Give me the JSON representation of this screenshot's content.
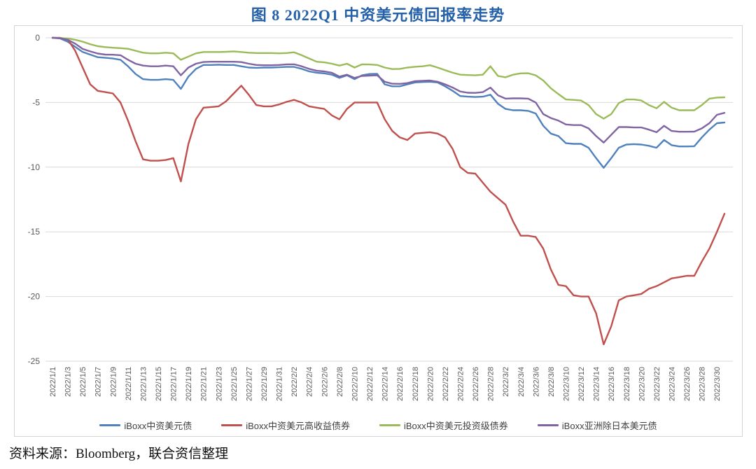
{
  "title": "图 8  2022Q1 中资美元债回报率走势",
  "source_note": "资料来源：Bloomberg，联合资信整理",
  "styles": {
    "title_color": "#2460A8",
    "axis_text_color": "#595959",
    "grid_color": "#d9d9d9",
    "frame_border_color": "#d4d4d4",
    "legend_text_color": "#3f3f3f"
  },
  "chart_data": {
    "type": "line",
    "title": "图 8  2022Q1 中资美元债回报率走势",
    "xlabel": "",
    "ylabel": "",
    "ylim": [
      -25,
      0
    ],
    "y_ticks": [
      0,
      -5,
      -10,
      -15,
      -20,
      -25
    ],
    "grid": "horizontal",
    "legend_position": "bottom",
    "n_points": 90,
    "x_tick_every_n_days": 2,
    "x_tick_labels": [
      "2022/1/1",
      "2022/1/3",
      "2022/1/5",
      "2022/1/7",
      "2022/1/9",
      "2022/1/11",
      "2022/1/13",
      "2022/1/15",
      "2022/1/17",
      "2022/1/19",
      "2022/1/21",
      "2022/1/23",
      "2022/1/25",
      "2022/1/27",
      "2022/1/29",
      "2022/1/31",
      "2022/2/2",
      "2022/2/4",
      "2022/2/6",
      "2022/2/8",
      "2022/2/10",
      "2022/2/12",
      "2022/2/14",
      "2022/2/16",
      "2022/2/18",
      "2022/2/20",
      "2022/2/22",
      "2022/2/24",
      "2022/2/26",
      "2022/2/28",
      "2022/3/2",
      "2022/3/4",
      "2022/3/6",
      "2022/3/8",
      "2022/3/10",
      "2022/3/12",
      "2022/3/14",
      "2022/3/16",
      "2022/3/18",
      "2022/3/20",
      "2022/3/22",
      "2022/3/24",
      "2022/3/26",
      "2022/3/28",
      "2022/3/30"
    ],
    "series": [
      {
        "name": "iBoxx中资美元债",
        "color": "#4F81BD",
        "values": [
          0,
          -0.05,
          -0.3,
          -0.7,
          -1.1,
          -1.3,
          -1.5,
          -1.55,
          -1.6,
          -1.7,
          -2.2,
          -2.8,
          -3.2,
          -3.25,
          -3.25,
          -3.2,
          -3.25,
          -3.95,
          -3.0,
          -2.4,
          -2.1,
          -2.1,
          -2.08,
          -2.1,
          -2.1,
          -2.2,
          -2.3,
          -2.32,
          -2.3,
          -2.3,
          -2.28,
          -2.25,
          -2.25,
          -2.4,
          -2.6,
          -2.7,
          -2.75,
          -2.85,
          -3.1,
          -2.9,
          -3.2,
          -2.9,
          -2.8,
          -2.78,
          -3.6,
          -3.75,
          -3.75,
          -3.6,
          -3.45,
          -3.42,
          -3.4,
          -3.45,
          -3.75,
          -4.1,
          -4.5,
          -4.55,
          -4.58,
          -4.55,
          -4.4,
          -5.1,
          -5.5,
          -5.6,
          -5.6,
          -5.65,
          -5.85,
          -6.8,
          -7.4,
          -7.6,
          -8.15,
          -8.2,
          -8.2,
          -8.5,
          -9.3,
          -10.05,
          -9.3,
          -8.5,
          -8.25,
          -8.22,
          -8.25,
          -8.35,
          -8.5,
          -7.9,
          -8.3,
          -8.4,
          -8.4,
          -8.38,
          -7.7,
          -7.1,
          -6.6,
          -6.55
        ]
      },
      {
        "name": "iBoxx中资美元高收益债券",
        "color": "#C0504D",
        "values": [
          0,
          0,
          -0.1,
          -1.0,
          -2.3,
          -3.6,
          -4.1,
          -4.2,
          -4.3,
          -5.0,
          -6.4,
          -8.0,
          -9.4,
          -9.5,
          -9.5,
          -9.45,
          -9.3,
          -11.1,
          -8.2,
          -6.3,
          -5.4,
          -5.35,
          -5.3,
          -4.9,
          -4.3,
          -3.7,
          -4.4,
          -5.2,
          -5.3,
          -5.3,
          -5.15,
          -4.95,
          -4.8,
          -5.0,
          -5.3,
          -5.4,
          -5.5,
          -6.0,
          -6.3,
          -5.5,
          -5.0,
          -5.0,
          -5.0,
          -5.0,
          -6.3,
          -7.2,
          -7.7,
          -7.9,
          -7.4,
          -7.35,
          -7.3,
          -7.4,
          -7.7,
          -8.6,
          -10.0,
          -10.45,
          -10.5,
          -11.2,
          -11.9,
          -12.4,
          -12.9,
          -14.2,
          -15.3,
          -15.3,
          -15.4,
          -16.3,
          -17.9,
          -19.1,
          -19.2,
          -19.9,
          -20.0,
          -20.0,
          -21.3,
          -23.7,
          -22.3,
          -20.3,
          -20.0,
          -19.9,
          -19.8,
          -19.4,
          -19.2,
          -18.9,
          -18.6,
          -18.5,
          -18.4,
          -18.4,
          -17.3,
          -16.3,
          -15.0,
          -13.6
        ]
      },
      {
        "name": "iBoxx中资美元投资级债券",
        "color": "#9BBB59",
        "values": [
          0,
          -0.02,
          -0.05,
          -0.15,
          -0.3,
          -0.5,
          -0.65,
          -0.72,
          -0.77,
          -0.8,
          -0.85,
          -1.0,
          -1.15,
          -1.2,
          -1.2,
          -1.15,
          -1.2,
          -1.7,
          -1.45,
          -1.2,
          -1.1,
          -1.1,
          -1.1,
          -1.08,
          -1.05,
          -1.1,
          -1.15,
          -1.18,
          -1.18,
          -1.18,
          -1.2,
          -1.18,
          -1.12,
          -1.35,
          -1.6,
          -1.85,
          -1.9,
          -2.0,
          -2.15,
          -2.0,
          -2.3,
          -2.05,
          -2.06,
          -2.1,
          -2.3,
          -2.42,
          -2.4,
          -2.3,
          -2.24,
          -2.2,
          -2.12,
          -2.3,
          -2.5,
          -2.7,
          -2.85,
          -2.88,
          -2.9,
          -2.85,
          -2.2,
          -2.95,
          -3.05,
          -2.85,
          -2.75,
          -2.74,
          -2.9,
          -3.3,
          -3.9,
          -4.35,
          -4.77,
          -4.8,
          -4.85,
          -5.2,
          -5.9,
          -6.25,
          -5.9,
          -5.05,
          -4.77,
          -4.77,
          -4.85,
          -5.2,
          -5.45,
          -4.95,
          -5.4,
          -5.6,
          -5.6,
          -5.6,
          -5.2,
          -4.7,
          -4.62,
          -4.6
        ]
      },
      {
        "name": "iBoxx亚洲除日本美元债",
        "color": "#8064A2",
        "values": [
          0,
          -0.03,
          -0.15,
          -0.45,
          -0.86,
          -1.05,
          -1.22,
          -1.3,
          -1.31,
          -1.35,
          -1.7,
          -2.0,
          -2.15,
          -2.2,
          -2.2,
          -2.15,
          -2.2,
          -2.9,
          -2.3,
          -2.0,
          -1.87,
          -1.85,
          -1.85,
          -1.85,
          -1.85,
          -1.88,
          -2.0,
          -2.1,
          -2.12,
          -2.12,
          -2.1,
          -2.05,
          -2.05,
          -2.2,
          -2.4,
          -2.55,
          -2.6,
          -2.7,
          -3.0,
          -2.85,
          -3.1,
          -2.95,
          -2.93,
          -2.9,
          -3.4,
          -3.55,
          -3.56,
          -3.5,
          -3.35,
          -3.33,
          -3.3,
          -3.4,
          -3.6,
          -3.85,
          -4.15,
          -4.25,
          -4.26,
          -4.2,
          -3.85,
          -4.45,
          -4.7,
          -4.68,
          -4.68,
          -4.7,
          -5.0,
          -5.9,
          -6.2,
          -6.4,
          -6.7,
          -6.75,
          -6.75,
          -7.0,
          -7.6,
          -8.1,
          -7.5,
          -6.9,
          -6.9,
          -6.93,
          -6.93,
          -7.1,
          -7.3,
          -6.8,
          -7.2,
          -7.26,
          -7.26,
          -7.25,
          -7.0,
          -6.6,
          -5.95,
          -5.8
        ]
      }
    ]
  }
}
